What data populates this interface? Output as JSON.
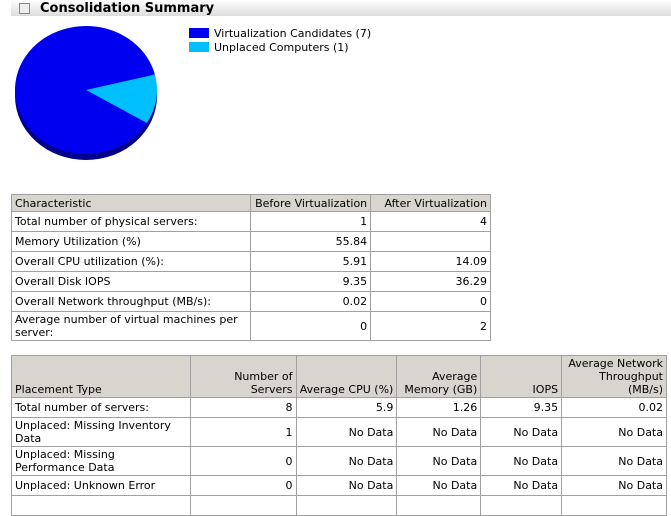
{
  "section": {
    "title": "Consolidation Summary",
    "collapse_icon": "collapse-icon"
  },
  "chart_data": {
    "type": "pie",
    "series": [
      {
        "name": "Virtualization Candidates (7)",
        "value": 7,
        "color": "#0000f0"
      },
      {
        "name": "Unplaced Computers (1)",
        "value": 1,
        "color": "#00bfff"
      }
    ],
    "legend_position": "right"
  },
  "characteristics": {
    "headers": [
      "Characteristic",
      "Before Virtualization",
      "After Virtualization"
    ],
    "rows": [
      [
        "Total number of physical servers:",
        "1",
        "4"
      ],
      [
        "Memory Utilization (%)",
        "55.84",
        ""
      ],
      [
        "Overall CPU utilization (%):",
        "5.91",
        "14.09"
      ],
      [
        "Overall Disk IOPS",
        "9.35",
        "36.29"
      ],
      [
        "Overall Network throughput (MB/s):",
        "0.02",
        "0"
      ],
      [
        "Average number of virtual machines per server:",
        "0",
        "2"
      ]
    ]
  },
  "placement": {
    "headers": [
      "Placement Type",
      "Number of Servers",
      "Average CPU (%)",
      "Average Memory (GB)",
      "IOPS",
      "Average Network Throughput (MB/s)"
    ],
    "rows": [
      [
        "Total number of servers:",
        "8",
        "5.9",
        "1.26",
        "9.35",
        "0.02"
      ],
      [
        "Unplaced: Missing Inventory Data",
        "1",
        "No Data",
        "No Data",
        "No Data",
        "No Data"
      ],
      [
        "Unplaced: Missing Performance Data",
        "0",
        "No Data",
        "No Data",
        "No Data",
        "No Data"
      ],
      [
        "Unplaced: Unknown Error",
        "0",
        "No Data",
        "No Data",
        "No Data",
        "No Data"
      ],
      [
        "",
        "",
        "",
        "",
        "",
        ""
      ]
    ]
  }
}
